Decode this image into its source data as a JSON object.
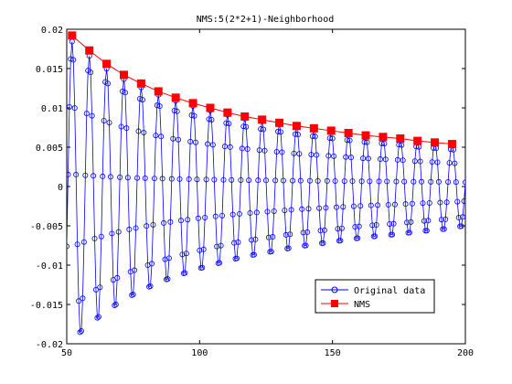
{
  "chart_data": {
    "type": "line",
    "title": "NMS:5(2*2+1)-Neighborhood",
    "xlabel": "",
    "ylabel": "",
    "xlim": [
      50,
      200
    ],
    "ylim": [
      -0.02,
      0.02
    ],
    "x_ticks": [
      50,
      100,
      150,
      200
    ],
    "x_tick_labels": [
      "50",
      "100",
      "150",
      "200"
    ],
    "y_ticks": [
      -0.02,
      -0.015,
      -0.01,
      -0.005,
      0,
      0.005,
      0.01,
      0.015,
      0.02
    ],
    "y_tick_labels": [
      "-0.02",
      "-0.015",
      "-0.01",
      "-0.005",
      "0",
      "0.005",
      "0.01",
      "0.015",
      "0.02"
    ],
    "grid": false,
    "legend_position": "bottom-right",
    "colors": {
      "original": "#0000ff",
      "nms": "#ff0000",
      "axes": "#000000",
      "background": "#ffffff"
    },
    "series": [
      {
        "name": "Original data",
        "marker": "circle-open",
        "line_color": "#0000ff",
        "note": "densely sampled damped oscillation",
        "x_start": 50,
        "x_end": 200,
        "step": 0.5
      },
      {
        "name": "NMS",
        "marker": "square-filled",
        "line_color": "#ff0000",
        "points": [
          [
            52,
            0.0192
          ],
          [
            58.5,
            0.0173
          ],
          [
            65,
            0.0156
          ],
          [
            71.5,
            0.0142
          ],
          [
            78,
            0.0131
          ],
          [
            84.5,
            0.0121
          ],
          [
            91,
            0.0113
          ],
          [
            97.5,
            0.0106
          ],
          [
            104,
            0.01
          ],
          [
            110.5,
            0.0094
          ],
          [
            117,
            0.0089
          ],
          [
            123.5,
            0.0085
          ],
          [
            130,
            0.0081
          ],
          [
            136.5,
            0.0077
          ],
          [
            143,
            0.0074
          ],
          [
            149.5,
            0.0071
          ],
          [
            156,
            0.0068
          ],
          [
            162.5,
            0.0065
          ],
          [
            169,
            0.0063
          ],
          [
            175.5,
            0.0061
          ],
          [
            182,
            0.0058
          ],
          [
            188.5,
            0.0056
          ],
          [
            195,
            0.0054
          ]
        ]
      }
    ]
  }
}
